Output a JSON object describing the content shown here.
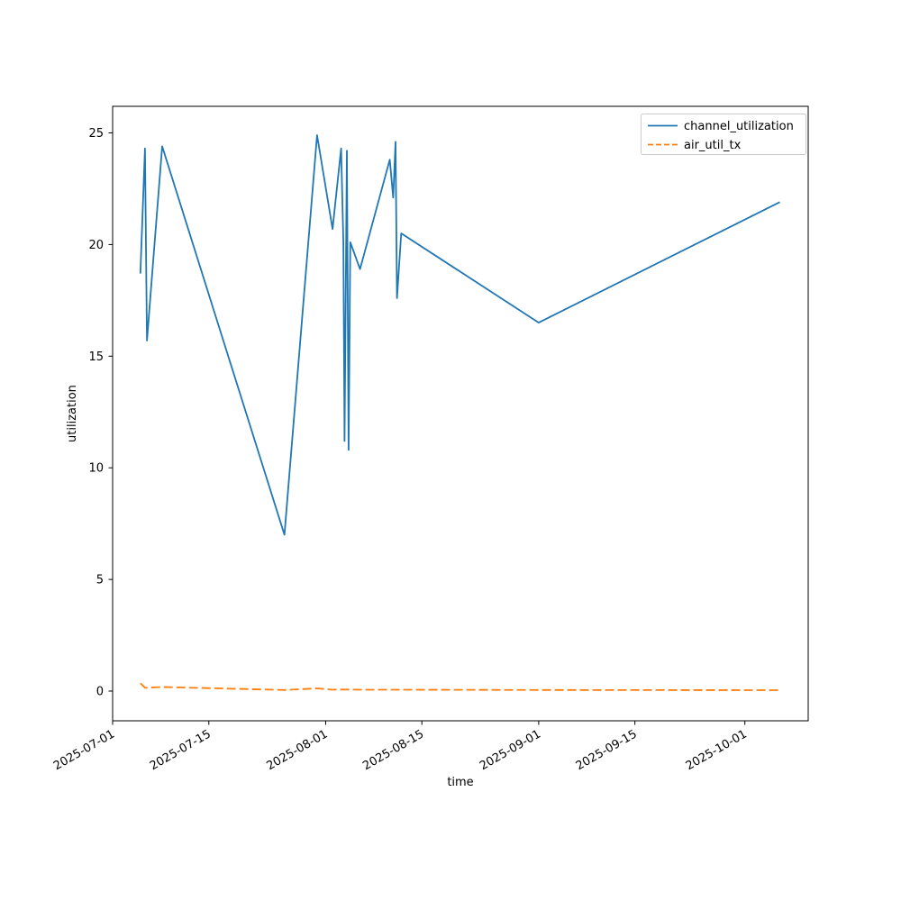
{
  "chart_data": {
    "type": "line",
    "title": "",
    "xlabel": "time",
    "ylabel": "utilization",
    "x_tick_labels": [
      "2025-07-01",
      "2025-07-15",
      "2025-08-01",
      "2025-08-15",
      "2025-09-01",
      "2025-09-15",
      "2025-10-01"
    ],
    "y_ticks": [
      0,
      5,
      10,
      15,
      20,
      25
    ],
    "xlim": [
      "2025-07-01",
      "2025-10-10"
    ],
    "ylim": [
      -1.3,
      26.2
    ],
    "grid": false,
    "legend_position": "upper right",
    "series": [
      {
        "name": "channel_utilization",
        "color": "#1f77b4",
        "style": "solid",
        "x": [
          "2025-07-05T01:00",
          "2025-07-05T17:00",
          "2025-07-06T00:00",
          "2025-07-08T05:00",
          "2025-07-26T00:00",
          "2025-07-30T18:00",
          "2025-08-02T00:00",
          "2025-08-03T06:00",
          "2025-08-03T14:00",
          "2025-08-03T18:00",
          "2025-08-04T02:00",
          "2025-08-04T08:00",
          "2025-08-04T14:00",
          "2025-08-06T00:00",
          "2025-08-10T08:00",
          "2025-08-10T20:00",
          "2025-08-11T04:00",
          "2025-08-11T09:00",
          "2025-08-12T00:00",
          "2025-09-01T00:00",
          "2025-10-06T02:00"
        ],
        "values": [
          18.7,
          24.3,
          15.7,
          24.4,
          7.0,
          24.9,
          20.7,
          24.3,
          20.1,
          11.2,
          24.2,
          10.8,
          20.1,
          18.9,
          23.8,
          22.1,
          24.6,
          17.6,
          20.5,
          16.5,
          21.9
        ]
      },
      {
        "name": "air_util_tx",
        "color": "#ff7f0e",
        "style": "dashed",
        "x": [
          "2025-07-05T01:00",
          "2025-07-05T17:00",
          "2025-07-06T00:00",
          "2025-07-08T05:00",
          "2025-07-26T00:00",
          "2025-07-30T18:00",
          "2025-08-02T00:00",
          "2025-08-03T06:00",
          "2025-08-03T14:00",
          "2025-08-03T18:00",
          "2025-08-04T02:00",
          "2025-08-04T08:00",
          "2025-08-04T14:00",
          "2025-08-06T00:00",
          "2025-08-10T08:00",
          "2025-08-10T20:00",
          "2025-08-11T04:00",
          "2025-08-11T09:00",
          "2025-08-12T00:00",
          "2025-09-01T00:00",
          "2025-10-06T02:00"
        ],
        "values": [
          0.35,
          0.15,
          0.15,
          0.18,
          0.05,
          0.12,
          0.06,
          0.07,
          0.07,
          0.07,
          0.07,
          0.07,
          0.07,
          0.06,
          0.06,
          0.06,
          0.06,
          0.06,
          0.06,
          0.05,
          0.04
        ]
      }
    ]
  }
}
